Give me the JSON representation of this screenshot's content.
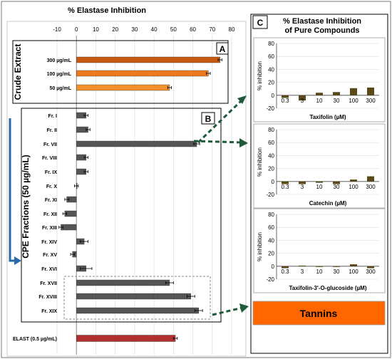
{
  "main_title": "% Elastase Inhibition",
  "main_axis": {
    "ticks": [
      -10,
      0,
      10,
      20,
      30,
      40,
      50,
      60,
      70,
      80
    ],
    "range": [
      -10,
      80
    ]
  },
  "panel_a": {
    "letter": "A",
    "group_label": "Crude Extract",
    "color": "#e07a1a"
  },
  "panel_b": {
    "letter": "B",
    "group_label": "CPE Fractions (50 µg/mL)"
  },
  "elast_color": "#b03030",
  "panel_c": {
    "letter": "C",
    "title_line1": "% Elastase Inhibition",
    "title_line2": "of Pure Compounds"
  },
  "tannins_label": "Tannins",
  "tannins_color": "#ff6600",
  "chart_data": [
    {
      "type": "bar",
      "title": "% Elastase Inhibition",
      "orientation": "horizontal",
      "xlim": [
        -10,
        80
      ],
      "categories": [
        "300 µg/mL",
        "100 µg/mL",
        "50 µg/mL"
      ],
      "values": [
        74,
        68,
        48
      ],
      "errors": [
        1,
        1,
        1
      ],
      "group": "Crude Extract"
    },
    {
      "type": "bar",
      "orientation": "horizontal",
      "xlim": [
        -10,
        80
      ],
      "categories": [
        "Fr. I",
        "Fr. II",
        "Fr. VII",
        "Fr. VIII",
        "Fr. IX",
        "Fr. X",
        "Fr. XI",
        "Fr. XII",
        "Fr. XIII",
        "Fr. XIV",
        "Fr. XV",
        "Fr. XVI",
        "Fr. XVII",
        "Fr. XVIII",
        "Fr. XIX"
      ],
      "values": [
        5,
        6,
        62,
        5,
        5,
        0,
        -5,
        -6,
        -8,
        4,
        -2,
        5,
        48,
        59,
        63
      ],
      "errors": [
        1,
        1,
        1.5,
        1,
        1,
        1,
        1,
        1,
        1,
        2,
        1,
        3,
        2,
        2,
        2
      ],
      "group": "CPE Fractions (50 µg/mL)"
    },
    {
      "type": "bar",
      "orientation": "horizontal",
      "xlim": [
        -10,
        80
      ],
      "categories": [
        "ELAST (0.5 µg/mL)"
      ],
      "values": [
        51
      ],
      "errors": [
        1
      ]
    },
    {
      "type": "bar",
      "categories": [
        "0.3",
        "3",
        "10",
        "30",
        "100",
        "300"
      ],
      "values": [
        -4,
        -8,
        4,
        5,
        11,
        12
      ],
      "xlabel": "Taxifolin (µM)",
      "ylabel": "% inhibition",
      "ylim": [
        -20,
        80
      ],
      "yticks": [
        -20,
        0,
        20,
        40,
        60,
        80
      ],
      "color": "#5a4a1a"
    },
    {
      "type": "bar",
      "categories": [
        "0.3",
        "3",
        "10",
        "30",
        "100",
        "300"
      ],
      "values": [
        -4,
        -4,
        -2,
        -4,
        3,
        8
      ],
      "xlabel": "Catechin (µM)",
      "ylabel": "% inhibition",
      "ylim": [
        -20,
        80
      ],
      "yticks": [
        -20,
        0,
        20,
        40,
        60,
        80
      ],
      "color": "#5a4a1a"
    },
    {
      "type": "bar",
      "categories": [
        "0.3",
        "3",
        "10",
        "30",
        "100",
        "300"
      ],
      "values": [
        -3,
        1,
        0,
        0,
        3,
        -3
      ],
      "xlabel": "Taxifolin-3'-O-glucoside (µM)",
      "ylabel": "% inhibition",
      "ylim": [
        -20,
        80
      ],
      "yticks": [
        -20,
        0,
        20,
        40,
        60,
        80
      ],
      "color": "#5a4a1a"
    }
  ]
}
